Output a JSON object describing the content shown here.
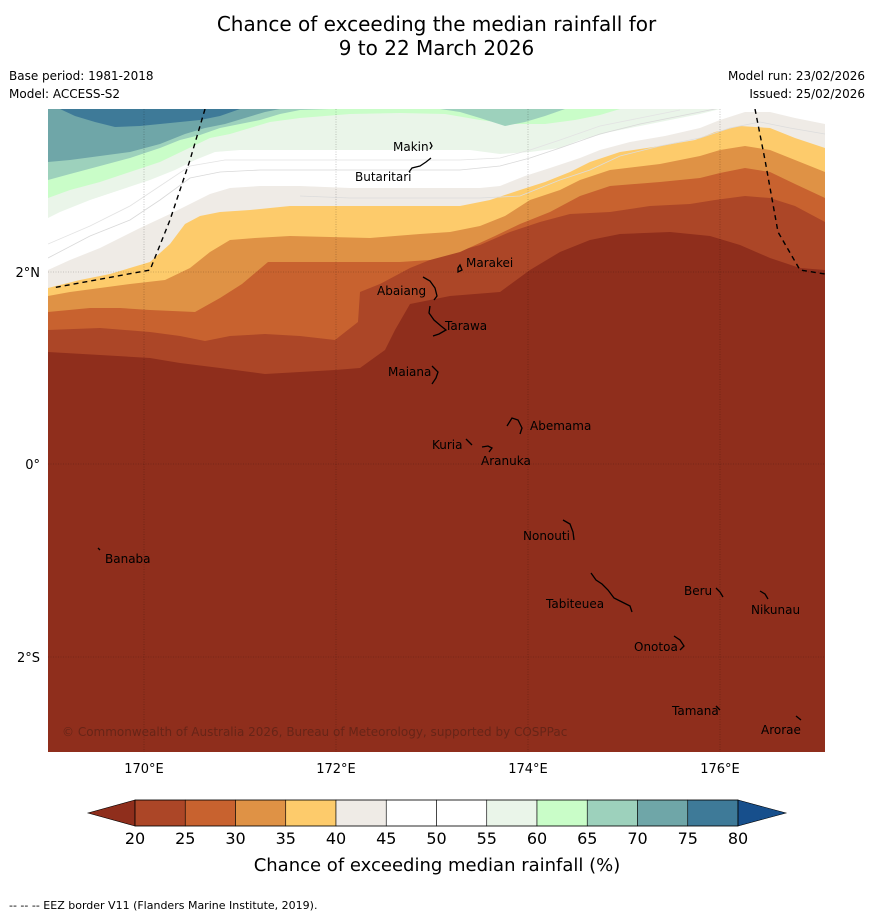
{
  "title": {
    "line1": "Chance of exceeding the median rainfall for",
    "line2": "9 to 22 March 2026"
  },
  "meta": {
    "base_period": "Base period: 1981-2018",
    "model": "Model: ACCESS-S2",
    "model_run": "Model run: 23/02/2026",
    "issued": "Issued: 25/02/2026"
  },
  "axes": {
    "lat_labels": [
      "2°N",
      "0°",
      "2°S"
    ],
    "lon_labels": [
      "170°E",
      "172°E",
      "174°E",
      "176°E"
    ]
  },
  "places": [
    {
      "name": "Makin"
    },
    {
      "name": "Butaritari"
    },
    {
      "name": "Marakei"
    },
    {
      "name": "Abaiang"
    },
    {
      "name": "Tarawa"
    },
    {
      "name": "Maiana"
    },
    {
      "name": "Abemama"
    },
    {
      "name": "Kuria"
    },
    {
      "name": "Aranuka"
    },
    {
      "name": "Nonouti"
    },
    {
      "name": "Banaba"
    },
    {
      "name": "Beru"
    },
    {
      "name": "Nikunau"
    },
    {
      "name": "Tabiteuea"
    },
    {
      "name": "Onotoa"
    },
    {
      "name": "Tamana"
    },
    {
      "name": "Arorae"
    }
  ],
  "copyright": "© Commonwealth of Australia 2026, Bureau of Meteorology, supported by COSPPac",
  "colorbar": {
    "ticks": [
      "20",
      "25",
      "30",
      "35",
      "40",
      "45",
      "50",
      "55",
      "60",
      "65",
      "70",
      "75",
      "80"
    ],
    "colors": [
      "#ac4627",
      "#c8622f",
      "#df9245",
      "#fdcb6b",
      "#efebe6",
      "#ffffff",
      "#ffffff",
      "#eaf5e9",
      "#c9fdc8",
      "#9dd1bc",
      "#6fa6a8",
      "#3e7a98"
    ],
    "under_color": "#8f2e1c",
    "over_color": "#174f8c",
    "label": "Chance of exceeding median rainfall (%)"
  },
  "legend_note": "-- -- -- EEZ border V11 (Flanders Marine Institute, 2019)."
}
